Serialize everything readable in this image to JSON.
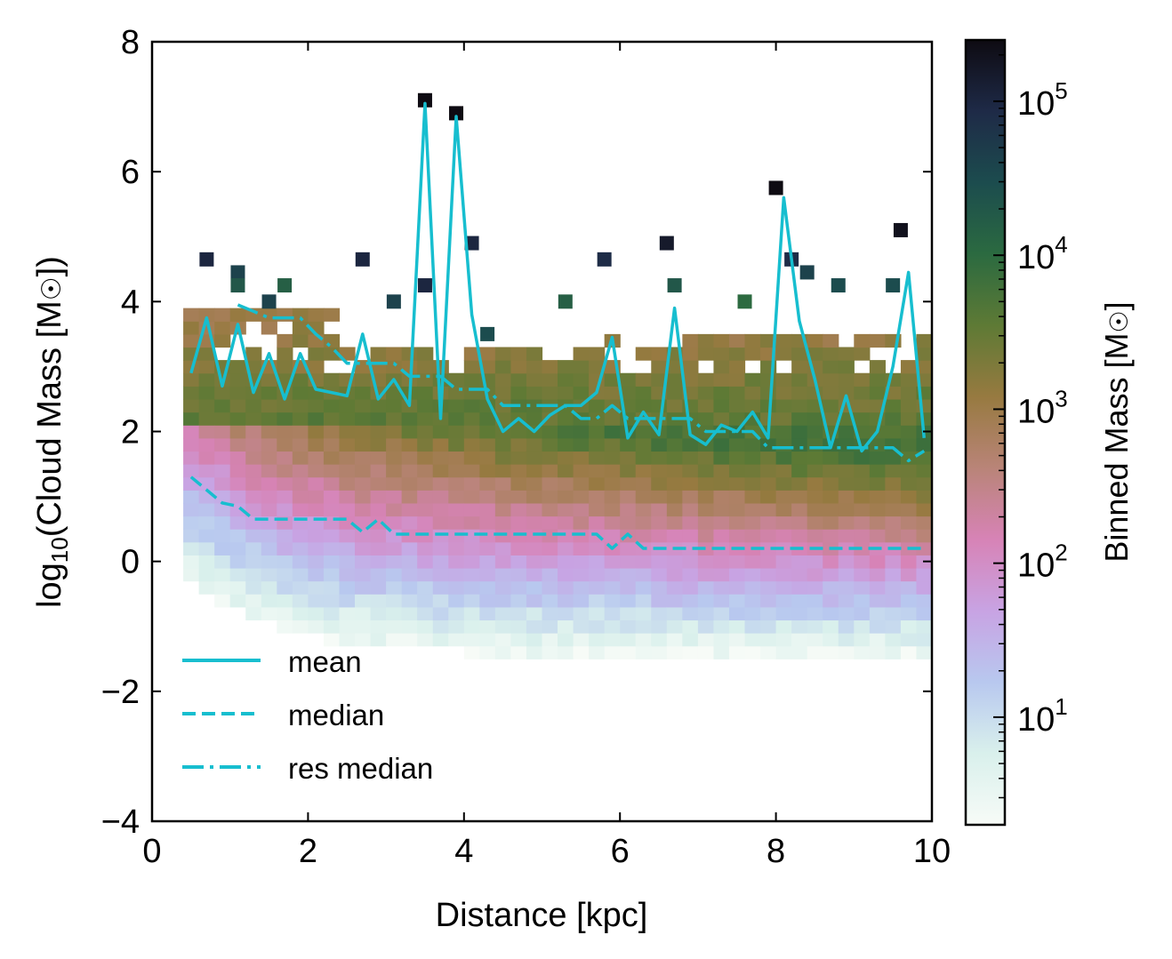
{
  "chart_data": {
    "type": "heatmap",
    "xlabel": "Distance [kpc]",
    "ylabel": "log₁₀(Cloud Mass [M☉])",
    "xlim": [
      0,
      10
    ],
    "ylim": [
      -4,
      8
    ],
    "xticks": [
      "0",
      "2",
      "4",
      "6",
      "8",
      "10"
    ],
    "yticks": [
      "−4",
      "−2",
      "0",
      "2",
      "4",
      "6",
      "8"
    ],
    "colorbar": {
      "label": "Binned Mass [M☉]",
      "scale": "log",
      "range": [
        2,
        250000
      ],
      "tick_values": [
        10,
        100,
        1000,
        10000,
        100000
      ],
      "tick_labels": [
        {
          "base": "10",
          "exp": "1"
        },
        {
          "base": "10",
          "exp": "2"
        },
        {
          "base": "10",
          "exp": "3"
        },
        {
          "base": "10",
          "exp": "4"
        },
        {
          "base": "10",
          "exp": "5"
        }
      ],
      "colormap": [
        "#f7fbf7",
        "#d9f0ec",
        "#b8c8ef",
        "#c8a3e3",
        "#d783b6",
        "#b98478",
        "#977a40",
        "#5e7a35",
        "#2b6a40",
        "#1c4c4e",
        "#1e2a47",
        "#0e0b12"
      ]
    },
    "legend": {
      "location": "lower-left",
      "entries": [
        {
          "label": "mean",
          "style": "solid"
        },
        {
          "label": "median",
          "style": "dashed"
        },
        {
          "label": "res median",
          "style": "dashdot"
        }
      ]
    },
    "line_color": "#17becf",
    "series": [
      {
        "name": "mean",
        "x": [
          0.5,
          0.7,
          0.9,
          1.1,
          1.3,
          1.5,
          1.7,
          1.9,
          2.1,
          2.3,
          2.5,
          2.7,
          2.9,
          3.1,
          3.3,
          3.5,
          3.7,
          3.9,
          4.1,
          4.3,
          4.5,
          4.7,
          4.9,
          5.1,
          5.3,
          5.5,
          5.7,
          5.9,
          6.1,
          6.3,
          6.5,
          6.7,
          6.9,
          7.1,
          7.3,
          7.5,
          7.7,
          7.9,
          8.1,
          8.3,
          8.5,
          8.7,
          8.9,
          9.1,
          9.3,
          9.5,
          9.7,
          9.9
        ],
        "y": [
          2.9,
          3.75,
          2.7,
          3.65,
          2.6,
          3.2,
          2.5,
          3.2,
          2.65,
          2.6,
          2.55,
          3.5,
          2.5,
          2.8,
          2.4,
          7.05,
          2.2,
          6.85,
          3.8,
          2.5,
          2.0,
          2.2,
          2.0,
          2.25,
          2.4,
          2.4,
          2.6,
          3.45,
          1.9,
          2.3,
          1.95,
          3.9,
          1.95,
          1.8,
          2.1,
          2.0,
          2.3,
          1.9,
          5.6,
          3.7,
          2.8,
          1.75,
          2.55,
          1.7,
          2.0,
          3.0,
          4.45,
          1.9
        ]
      },
      {
        "name": "median",
        "x": [
          0.5,
          0.7,
          0.9,
          1.1,
          1.3,
          1.5,
          1.7,
          1.9,
          2.1,
          2.3,
          2.5,
          2.7,
          2.9,
          3.1,
          3.3,
          3.5,
          3.7,
          3.9,
          4.1,
          4.3,
          4.5,
          4.7,
          4.9,
          5.1,
          5.3,
          5.5,
          5.7,
          5.9,
          6.1,
          6.3,
          6.5,
          6.7,
          6.9,
          7.1,
          7.3,
          7.5,
          7.7,
          7.9,
          8.1,
          8.3,
          8.5,
          8.7,
          8.9,
          9.1,
          9.3,
          9.5,
          9.7,
          9.9
        ],
        "y": [
          1.3,
          1.1,
          0.9,
          0.85,
          0.65,
          0.65,
          0.65,
          0.65,
          0.65,
          0.65,
          0.65,
          0.45,
          0.65,
          0.42,
          0.42,
          0.42,
          0.42,
          0.42,
          0.42,
          0.42,
          0.42,
          0.42,
          0.42,
          0.42,
          0.42,
          0.42,
          0.42,
          0.2,
          0.42,
          0.2,
          0.2,
          0.2,
          0.2,
          0.2,
          0.2,
          0.2,
          0.2,
          0.2,
          0.2,
          0.2,
          0.2,
          0.2,
          0.2,
          0.2,
          0.2,
          0.2,
          0.2,
          0.2
        ]
      },
      {
        "name": "res median",
        "x": [
          1.1,
          1.3,
          1.5,
          1.7,
          1.9,
          2.1,
          2.3,
          2.5,
          2.7,
          2.9,
          3.1,
          3.3,
          3.5,
          3.7,
          3.9,
          4.1,
          4.3,
          4.5,
          4.7,
          4.9,
          5.1,
          5.3,
          5.5,
          5.7,
          5.9,
          6.1,
          6.3,
          6.5,
          6.7,
          6.9,
          7.1,
          7.3,
          7.5,
          7.7,
          7.9,
          8.1,
          8.3,
          8.5,
          8.7,
          8.9,
          9.1,
          9.3,
          9.5,
          9.7,
          9.9
        ],
        "y": [
          3.95,
          3.85,
          3.75,
          3.75,
          3.75,
          3.5,
          3.3,
          3.05,
          3.05,
          3.05,
          3.05,
          2.85,
          2.85,
          2.85,
          2.65,
          2.65,
          2.65,
          2.4,
          2.4,
          2.4,
          2.4,
          2.4,
          2.2,
          2.2,
          2.4,
          2.2,
          2.2,
          2.2,
          2.2,
          2.2,
          2.0,
          2.0,
          2.0,
          2.0,
          1.75,
          1.75,
          1.75,
          1.75,
          1.75,
          1.75,
          1.75,
          1.75,
          1.75,
          1.55,
          1.7
        ]
      }
    ],
    "heatmap_grid": {
      "x_bins": [
        0.4,
        9.9
      ],
      "bin_width_kpc": 0.2,
      "bin_height_dex": 0.2
    },
    "outlier_cells": [
      {
        "x": 3.5,
        "y": 7.1,
        "mass": 250000
      },
      {
        "x": 3.9,
        "y": 6.9,
        "mass": 250000
      },
      {
        "x": 8.0,
        "y": 5.75,
        "mass": 250000
      },
      {
        "x": 9.6,
        "y": 5.1,
        "mass": 200000
      },
      {
        "x": 6.6,
        "y": 4.9,
        "mass": 150000
      },
      {
        "x": 4.1,
        "y": 4.9,
        "mass": 100000
      },
      {
        "x": 0.7,
        "y": 4.65,
        "mass": 100000
      },
      {
        "x": 2.7,
        "y": 4.65,
        "mass": 100000
      },
      {
        "x": 5.8,
        "y": 4.65,
        "mass": 80000
      },
      {
        "x": 8.2,
        "y": 4.65,
        "mass": 80000
      },
      {
        "x": 1.1,
        "y": 4.45,
        "mass": 40000
      },
      {
        "x": 8.4,
        "y": 4.45,
        "mass": 40000
      },
      {
        "x": 1.1,
        "y": 4.25,
        "mass": 20000
      },
      {
        "x": 1.7,
        "y": 4.25,
        "mass": 15000
      },
      {
        "x": 3.5,
        "y": 4.25,
        "mass": 100000
      },
      {
        "x": 6.7,
        "y": 4.25,
        "mass": 20000
      },
      {
        "x": 8.8,
        "y": 4.25,
        "mass": 30000
      },
      {
        "x": 9.5,
        "y": 4.25,
        "mass": 30000
      },
      {
        "x": 1.5,
        "y": 4.0,
        "mass": 40000
      },
      {
        "x": 3.1,
        "y": 4.0,
        "mass": 40000
      },
      {
        "x": 5.3,
        "y": 4.0,
        "mass": 15000
      },
      {
        "x": 7.6,
        "y": 4.0,
        "mass": 10000
      },
      {
        "x": 4.3,
        "y": 3.5,
        "mass": 30000
      }
    ]
  }
}
